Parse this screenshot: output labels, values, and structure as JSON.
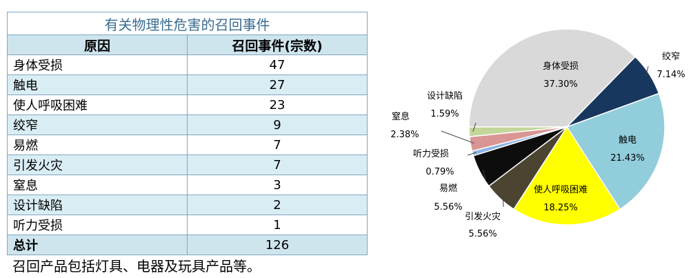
{
  "table": {
    "title": "有关物理性危害的召回事件",
    "headers": [
      "原因",
      "召回事件(宗数)"
    ],
    "rows": [
      {
        "cause": "身体受损",
        "count": "47"
      },
      {
        "cause": "触电",
        "count": "27"
      },
      {
        "cause": "使人呼吸困难",
        "count": "23"
      },
      {
        "cause": "绞窄",
        "count": "9"
      },
      {
        "cause": "易燃",
        "count": "7"
      },
      {
        "cause": "引发火灾",
        "count": "7"
      },
      {
        "cause": "窒息",
        "count": "3"
      },
      {
        "cause": "设计缺陷",
        "count": "2"
      },
      {
        "cause": "听力受损",
        "count": "1"
      }
    ],
    "total_label": "总计",
    "total_value": "126"
  },
  "note": "召回产品包括灯具、电器及玩具产品等。",
  "chart_data": {
    "type": "pie",
    "slices": [
      {
        "label": "身体受损",
        "value": 37.3,
        "pct": "37.30%",
        "color": "#d9d9d9"
      },
      {
        "label": "绞窄",
        "value": 7.14,
        "pct": "7.14%",
        "color": "#17375e"
      },
      {
        "label": "触电",
        "value": 21.43,
        "pct": "21.43%",
        "color": "#92cddc"
      },
      {
        "label": "使人呼吸困难",
        "value": 18.25,
        "pct": "18.25%",
        "color": "#ffff00"
      },
      {
        "label": "引发火灾",
        "value": 5.56,
        "pct": "5.56%",
        "color": "#4a4431"
      },
      {
        "label": "易燃",
        "value": 5.56,
        "pct": "5.56%",
        "color": "#0d0d0d"
      },
      {
        "label": "听力受损",
        "value": 0.79,
        "pct": "0.79%",
        "color": "#8eb4e3"
      },
      {
        "label": "窒息",
        "value": 2.38,
        "pct": "2.38%",
        "color": "#d99694"
      },
      {
        "label": "设计缺陷",
        "value": 1.59,
        "pct": "1.59%",
        "color": "#c3d69b"
      }
    ],
    "start_angle_deg": 180,
    "direction": "clockwise"
  }
}
